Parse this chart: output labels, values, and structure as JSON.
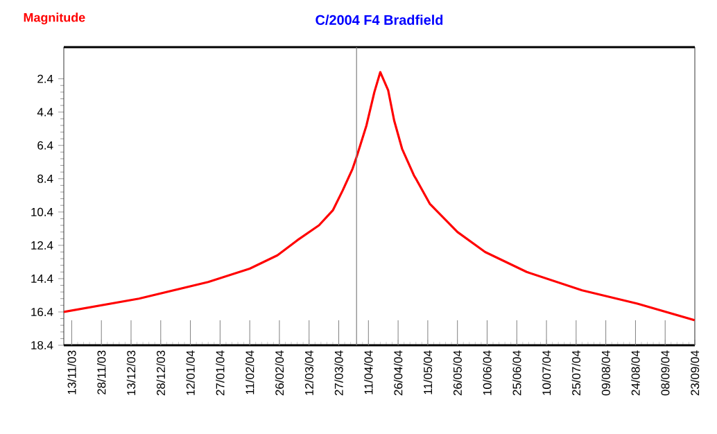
{
  "chart_data": {
    "type": "line",
    "title": "C/2004 F4 Bradfield",
    "ylabel": "Magnitude",
    "x": [
      "2003-11-09",
      "2003-12-17",
      "2004-01-21",
      "2004-02-11",
      "2004-02-25",
      "2004-03-06",
      "2004-03-17",
      "2004-03-24",
      "2004-03-29",
      "2004-04-03",
      "2004-04-05",
      "2004-04-10",
      "2004-04-14",
      "2004-04-17",
      "2004-04-21",
      "2004-04-24",
      "2004-04-28",
      "2004-05-04",
      "2004-05-05",
      "2004-05-12",
      "2004-05-26",
      "2004-06-09",
      "2004-06-30",
      "2004-07-28",
      "2004-08-25",
      "2004-09-23"
    ],
    "series": [
      {
        "color": "#ff0000",
        "values": [
          16.4,
          15.6,
          14.6,
          13.8,
          13.0,
          12.1,
          11.2,
          10.3,
          9.1,
          7.8,
          7.1,
          5.2,
          3.2,
          2.0,
          3.1,
          4.9,
          6.6,
          8.2,
          8.4,
          9.9,
          11.6,
          12.8,
          14.0,
          15.1,
          15.9,
          16.9
        ]
      }
    ],
    "xlim": [
      "2003-11-09",
      "2004-09-23"
    ],
    "ylim": [
      18.4,
      0.5
    ],
    "yticks": [
      2.4,
      4.4,
      6.4,
      8.4,
      10.4,
      12.4,
      14.4,
      16.4,
      18.4
    ],
    "xticks": [
      {
        "value": "2003-11-13",
        "label": "13/11/03"
      },
      {
        "value": "2003-11-28",
        "label": "28/11/03"
      },
      {
        "value": "2003-12-13",
        "label": "13/12/03"
      },
      {
        "value": "2003-12-28",
        "label": "28/12/03"
      },
      {
        "value": "2004-01-12",
        "label": "12/01/04"
      },
      {
        "value": "2004-01-27",
        "label": "27/01/04"
      },
      {
        "value": "2004-02-11",
        "label": "11/02/04"
      },
      {
        "value": "2004-02-26",
        "label": "26/02/04"
      },
      {
        "value": "2004-03-12",
        "label": "12/03/04"
      },
      {
        "value": "2004-03-27",
        "label": "27/03/04"
      },
      {
        "value": "2004-04-11",
        "label": "11/04/04"
      },
      {
        "value": "2004-04-26",
        "label": "26/04/04"
      },
      {
        "value": "2004-05-11",
        "label": "11/05/04"
      },
      {
        "value": "2004-05-26",
        "label": "26/05/04"
      },
      {
        "value": "2004-06-10",
        "label": "10/06/04"
      },
      {
        "value": "2004-06-25",
        "label": "25/06/04"
      },
      {
        "value": "2004-07-10",
        "label": "10/07/04"
      },
      {
        "value": "2004-07-25",
        "label": "25/07/04"
      },
      {
        "value": "2004-08-09",
        "label": "09/08/04"
      },
      {
        "value": "2004-08-24",
        "label": "24/08/04"
      },
      {
        "value": "2004-09-08",
        "label": "08/09/04"
      },
      {
        "value": "2004-09-23",
        "label": "23/09/04"
      }
    ],
    "ref_lines": [
      {
        "axis": "x",
        "value": "2004-04-05",
        "color": "#808080"
      }
    ]
  }
}
